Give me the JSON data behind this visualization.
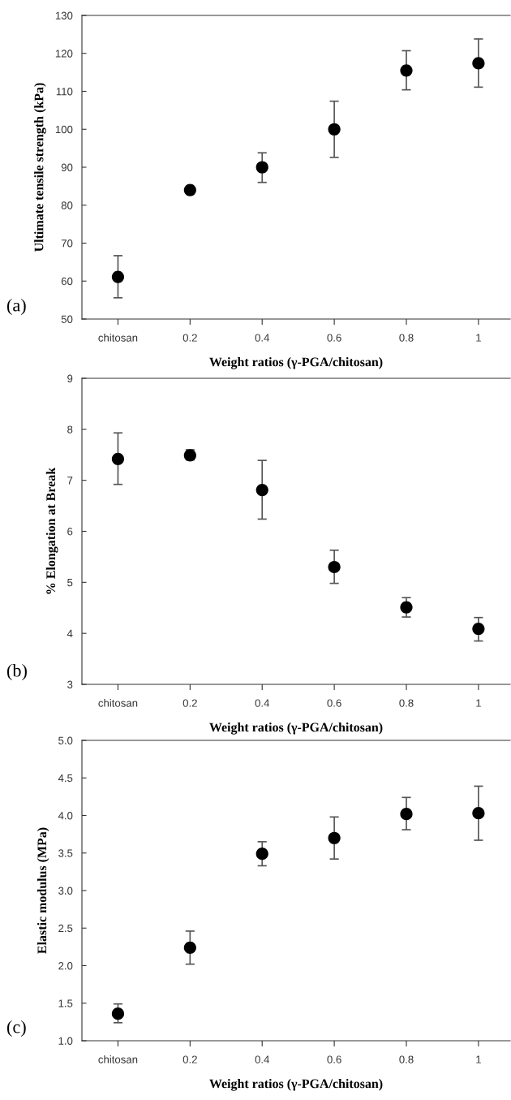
{
  "chart_data": [
    {
      "type": "scatter",
      "ylabel": "Ultimate tensile strength (kPa)",
      "xlabel": "Weight ratios (γ-PGA/chitosan)",
      "annotations": [
        "(a)"
      ],
      "categories": [
        "chitosan",
        "0.2",
        "0.4",
        "0.6",
        "0.8",
        "1"
      ],
      "ylim": [
        50,
        130
      ],
      "yticks": [
        50,
        60,
        70,
        80,
        90,
        100,
        110,
        120,
        130
      ],
      "marker": "circle",
      "series": [
        {
          "color": "#000000",
          "values": [
            61.1,
            84.0,
            90.0,
            100.0,
            115.5,
            117.4
          ],
          "errors": [
            [
              55.6,
              66.7
            ],
            null,
            [
              86.0,
              93.8
            ],
            [
              92.6,
              107.4
            ],
            [
              110.4,
              120.7
            ],
            [
              111.1,
              123.8
            ]
          ]
        }
      ]
    },
    {
      "type": "scatter",
      "ylabel": "% Elongation at Break",
      "xlabel": "Weight ratios (γ-PGA/chitosan)",
      "annotations": [
        "(b)"
      ],
      "categories": [
        "chitosan",
        "0.2",
        "0.4",
        "0.6",
        "0.8",
        "1"
      ],
      "ylim": [
        3,
        9
      ],
      "yticks": [
        3,
        4,
        5,
        6,
        7,
        8,
        9
      ],
      "marker": "circle",
      "series": [
        {
          "color": "#000000",
          "values": [
            7.42,
            7.49,
            6.81,
            5.3,
            4.51,
            4.09
          ],
          "errors": [
            [
              6.92,
              7.93
            ],
            [
              7.4,
              7.6
            ],
            [
              6.24,
              7.39
            ],
            [
              4.98,
              5.63
            ],
            [
              4.32,
              4.7
            ],
            [
              3.85,
              4.31
            ]
          ]
        }
      ]
    },
    {
      "type": "scatter",
      "ylabel": "Elastic modulus (MPa)",
      "xlabel": "Weight ratios (γ-PGA/chitosan)",
      "annotations": [
        "(c)"
      ],
      "categories": [
        "chitosan",
        "0.2",
        "0.4",
        "0.6",
        "0.8",
        "1"
      ],
      "ylim": [
        1.0,
        5.0
      ],
      "yticks": [
        {
          "value": 1.0,
          "label": "1.0"
        },
        1.5,
        {
          "value": 2.0,
          "label": "2.0"
        },
        2.5,
        {
          "value": 3.0,
          "label": "3.0"
        },
        3.5,
        {
          "value": 4.0,
          "label": "4.0"
        },
        4.5,
        {
          "value": 5.0,
          "label": "5.0"
        }
      ],
      "marker": "circle",
      "series": [
        {
          "color": "#000000",
          "values": [
            1.36,
            2.24,
            3.49,
            3.7,
            4.02,
            4.03
          ],
          "errors": [
            [
              1.24,
              1.49
            ],
            [
              2.02,
              2.46
            ],
            [
              3.33,
              3.65
            ],
            [
              3.42,
              3.98
            ],
            [
              3.81,
              4.24
            ],
            [
              3.67,
              4.39
            ]
          ]
        }
      ]
    }
  ]
}
